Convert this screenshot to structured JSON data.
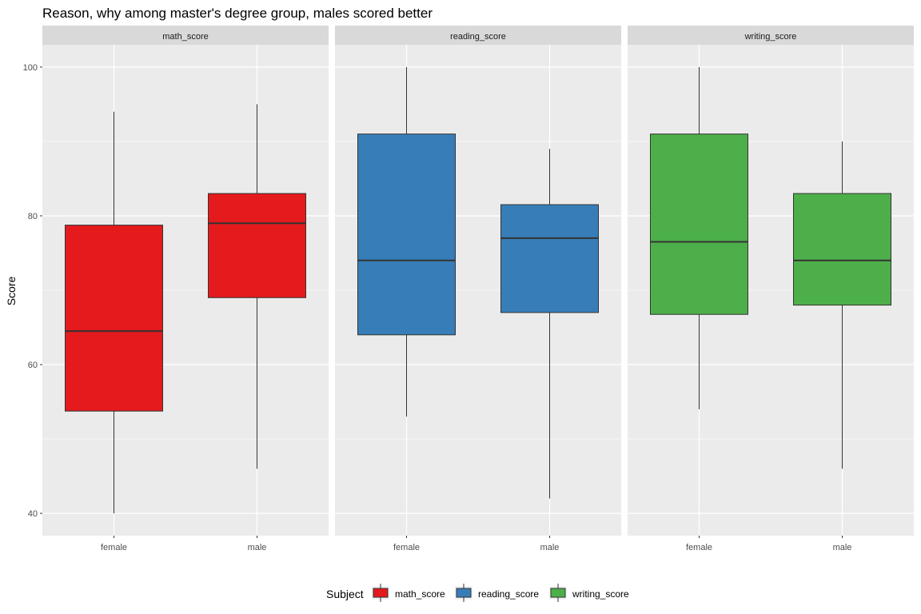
{
  "chart_data": {
    "type": "boxplot",
    "title": "Reason, why among master's degree group, males scored better",
    "ylabel": "Score",
    "xlabel": "",
    "ylim": [
      37,
      103
    ],
    "yticks": [
      40,
      60,
      80,
      100
    ],
    "categories": [
      "female",
      "male"
    ],
    "grid": true,
    "legend": {
      "title": "Subject",
      "placement": "bottom",
      "entries": [
        "math_score",
        "reading_score",
        "writing_score"
      ]
    },
    "panels": [
      {
        "name": "math_score",
        "color": "#E41A1C",
        "boxes": [
          {
            "category": "female",
            "min": 40,
            "q1": 53.75,
            "median": 64.5,
            "q3": 78.75,
            "max": 94
          },
          {
            "category": "male",
            "min": 46,
            "q1": 69,
            "median": 79,
            "q3": 83,
            "max": 95
          }
        ]
      },
      {
        "name": "reading_score",
        "color": "#377EB8",
        "boxes": [
          {
            "category": "female",
            "min": 53,
            "q1": 64,
            "median": 74,
            "q3": 91,
            "max": 100
          },
          {
            "category": "male",
            "min": 42,
            "q1": 67,
            "median": 77,
            "q3": 81.5,
            "max": 89
          }
        ]
      },
      {
        "name": "writing_score",
        "color": "#4DAF4A",
        "boxes": [
          {
            "category": "female",
            "min": 54,
            "q1": 66.75,
            "median": 76.5,
            "q3": 91,
            "max": 100
          },
          {
            "category": "male",
            "min": 46,
            "q1": 68,
            "median": 74,
            "q3": 83,
            "max": 90
          }
        ]
      }
    ]
  }
}
